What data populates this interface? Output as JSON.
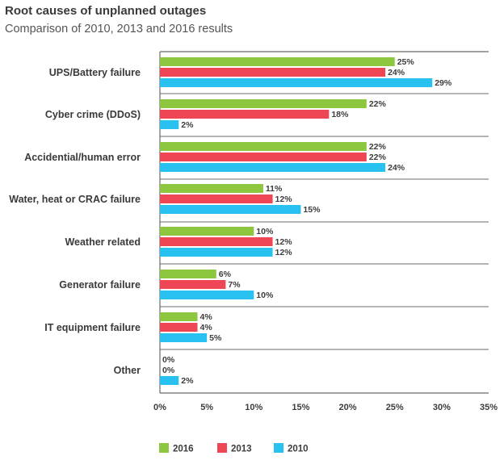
{
  "title": "Root causes of unplanned outages",
  "subtitle": "Comparison of 2010, 2013 and 2016 results",
  "chart_data": {
    "type": "bar",
    "orientation": "horizontal",
    "categories": [
      "UPS/Battery failure",
      "Cyber crime (DDoS)",
      "Accidential/human error",
      "Water, heat or CRAC failure",
      "Weather related",
      "Generator failure",
      "IT equipment failure",
      "Other"
    ],
    "series": [
      {
        "name": "2016",
        "color": "#8dc63f",
        "values": [
          25,
          22,
          22,
          11,
          10,
          6,
          4,
          0
        ]
      },
      {
        "name": "2013",
        "color": "#ef4655",
        "values": [
          24,
          18,
          22,
          12,
          12,
          7,
          4,
          0
        ]
      },
      {
        "name": "2010",
        "color": "#29c1ef",
        "values": [
          29,
          2,
          24,
          15,
          12,
          10,
          5,
          2
        ]
      }
    ],
    "value_suffix": "%",
    "xlim": [
      0,
      35
    ],
    "xticks": [
      "0%",
      "5%",
      "10%",
      "15%",
      "20%",
      "25%",
      "30%",
      "35%"
    ],
    "legend_position": "bottom",
    "grid": false
  }
}
